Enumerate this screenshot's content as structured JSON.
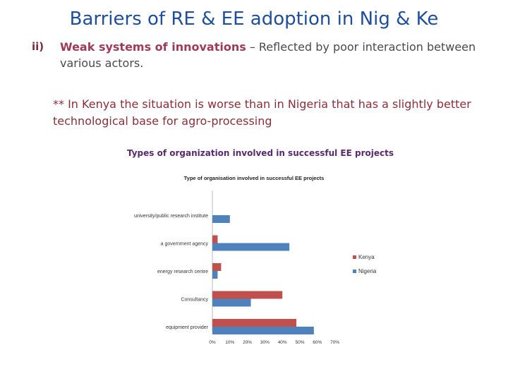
{
  "slide": {
    "title": "Barriers of RE & EE adoption in Nig & Ke",
    "item_number": "ii)",
    "item_highlight": "Weak systems of innovations",
    "item_rest": " – Reflected by poor interaction between various actors.",
    "note": "** In Kenya the situation is worse than in Nigeria that has a slightly better technological base for agro-processing",
    "chart_caption": "Types of organization involved in successful EE projects"
  },
  "chart_data": {
    "type": "bar",
    "orientation": "horizontal",
    "title": "Type of organisation involved in successful EE projects",
    "categories": [
      "university/public research institute",
      "a government agency",
      "energy research centre",
      "Consultancy",
      "equipment provider"
    ],
    "series": [
      {
        "name": "Kenya",
        "color": "#c0504d",
        "values": [
          0,
          3,
          5,
          40,
          48
        ]
      },
      {
        "name": "Nigeria",
        "color": "#4f81bd",
        "values": [
          10,
          44,
          3,
          22,
          58
        ]
      }
    ],
    "xticks": [
      "0%",
      "10%",
      "20%",
      "30%",
      "40%",
      "50%",
      "60%",
      "70%"
    ],
    "xlim": [
      0,
      70
    ],
    "grid": false,
    "legend_position": "right"
  }
}
